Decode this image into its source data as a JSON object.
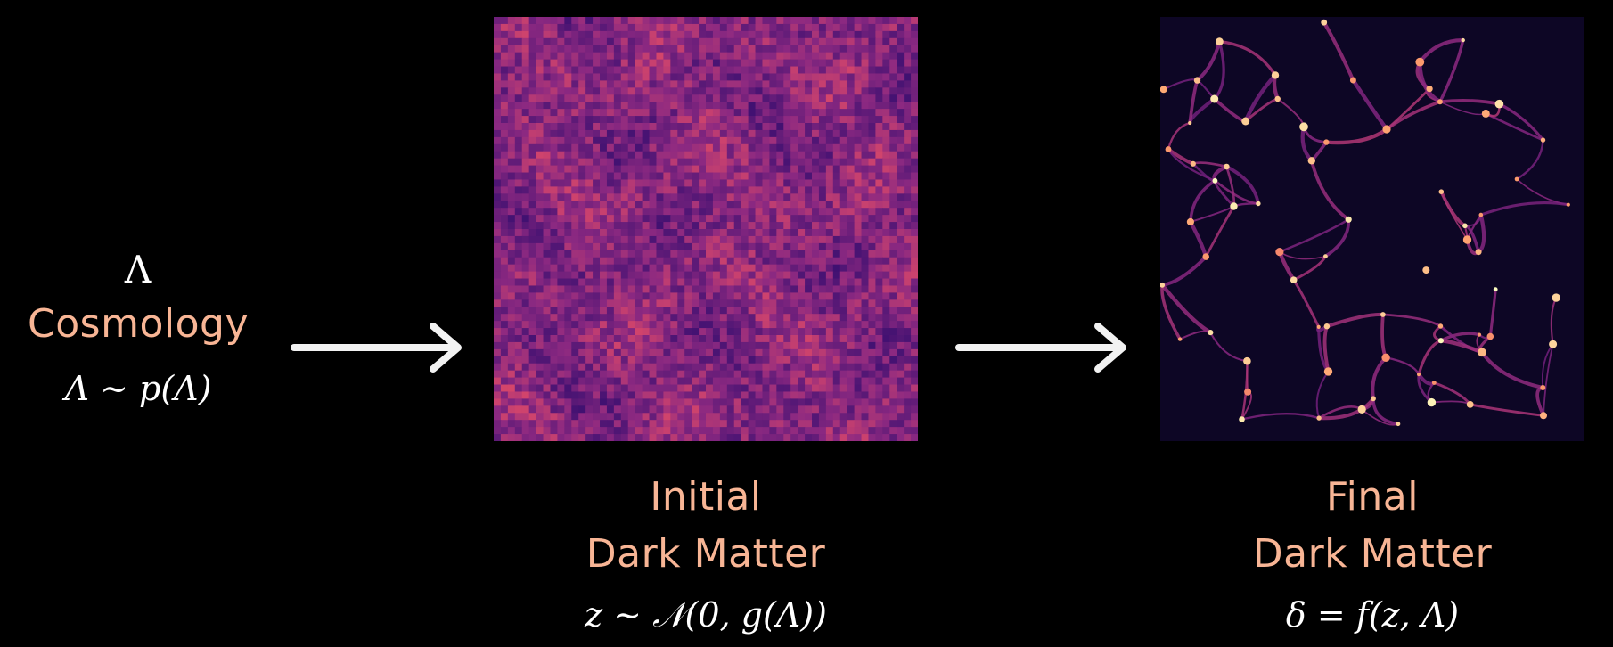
{
  "cosmology": {
    "symbol": "Λ",
    "label": "Cosmology",
    "formula": "Λ ~ p(Λ)"
  },
  "initial": {
    "label_line1": "Initial",
    "label_line2": "Dark Matter",
    "formula": "z ~ 𝒩(0, g(Λ))"
  },
  "final": {
    "label_line1": "Final",
    "label_line2": "Dark Matter",
    "formula": "δ = f(z, Λ)"
  },
  "colors": {
    "background": "#000000",
    "label": "#f8b595",
    "math": "#ffffff",
    "arrow": "#f2f2f2"
  }
}
